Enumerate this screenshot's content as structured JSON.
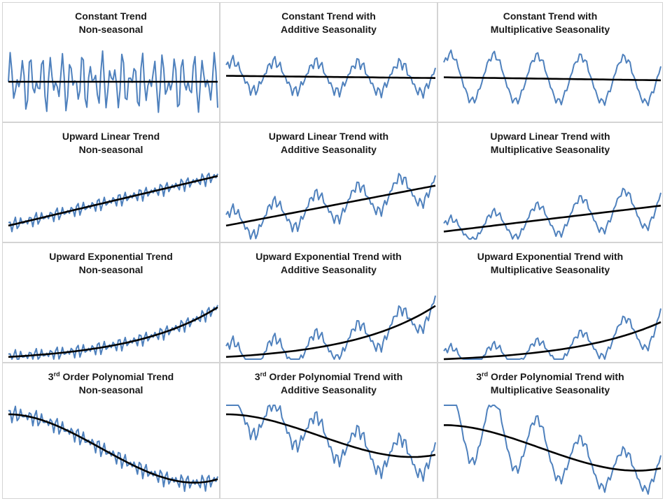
{
  "colors": {
    "series": "#4f81bd",
    "trend": "#000000",
    "border": "#d4d4d4"
  },
  "chart_data": [
    {
      "type": "line",
      "trend": "constant",
      "seasonality": "none",
      "title_lines": [
        {
          "text": "Constant Trend"
        },
        {
          "text": "Non-seasonal"
        }
      ],
      "ylim": [
        0,
        1
      ],
      "series": [],
      "trend_line": {
        "y0": 0.5,
        "y1": 0.5
      }
    },
    {
      "type": "line",
      "trend": "constant",
      "seasonality": "additive",
      "title_lines": [
        {
          "text": "Constant Trend with"
        },
        {
          "text": "Additive Seasonality"
        }
      ],
      "ylim": [
        0,
        1
      ],
      "series": [],
      "trend_line": {
        "y0": 0.58,
        "y1": 0.55
      }
    },
    {
      "type": "line",
      "trend": "constant",
      "seasonality": "multiplicative",
      "title_lines": [
        {
          "text": "Constant Trend with"
        },
        {
          "text": "Multiplicative Seasonality"
        }
      ],
      "ylim": [
        0,
        1
      ],
      "series": [],
      "trend_line": {
        "y0": 0.56,
        "y1": 0.52
      }
    },
    {
      "type": "line",
      "trend": "linear",
      "seasonality": "none",
      "title_lines": [
        {
          "text": "Upward Linear Trend"
        },
        {
          "text": "Non-seasonal"
        }
      ],
      "ylim": [
        0,
        1
      ],
      "series": [],
      "trend_line": {
        "y0": 0.18,
        "y1": 0.85
      }
    },
    {
      "type": "line",
      "trend": "linear",
      "seasonality": "additive",
      "title_lines": [
        {
          "text": "Upward Linear Trend with"
        },
        {
          "text": "Additive Seasonality"
        }
      ],
      "ylim": [
        0,
        1
      ],
      "series": [],
      "trend_line": {
        "y0": 0.18,
        "y1": 0.72
      }
    },
    {
      "type": "line",
      "trend": "linear",
      "seasonality": "multiplicative",
      "title_lines": [
        {
          "text": "Upward Linear Trend with"
        },
        {
          "text": "Multiplicative Seasonality"
        }
      ],
      "ylim": [
        0,
        1
      ],
      "series": [],
      "trend_line": {
        "y0": 0.1,
        "y1": 0.45
      }
    },
    {
      "type": "line",
      "trend": "exponential",
      "seasonality": "none",
      "title_lines": [
        {
          "text": "Upward Exponential Trend"
        },
        {
          "text": "Non-seasonal"
        }
      ],
      "ylim": [
        0,
        1
      ],
      "series": [],
      "trend_line": {
        "y0": 0.03,
        "y1": 0.7
      }
    },
    {
      "type": "line",
      "trend": "exponential",
      "seasonality": "additive",
      "title_lines": [
        {
          "text": "Upward Exponential Trend with"
        },
        {
          "text": "Additive Seasonality"
        }
      ],
      "ylim": [
        0,
        1
      ],
      "series": [],
      "trend_line": {
        "y0": 0.03,
        "y1": 0.72
      }
    },
    {
      "type": "line",
      "trend": "exponential",
      "seasonality": "multiplicative",
      "title_lines": [
        {
          "text": "Upward Exponential Trend with"
        },
        {
          "text": "Multiplicative Seasonality"
        }
      ],
      "ylim": [
        0,
        1
      ],
      "series": [],
      "trend_line": {
        "y0": 0.0,
        "y1": 0.5
      }
    },
    {
      "type": "line",
      "trend": "polynomial",
      "seasonality": "none",
      "title_lines": [
        {
          "text": "3",
          "sup": "rd",
          "rest": " Order Polynomial Trend"
        },
        {
          "text": "Non-seasonal"
        }
      ],
      "ylim": [
        0,
        1
      ],
      "series": [],
      "trend_line": {
        "y0": 0.9,
        "y1": 0.18
      }
    },
    {
      "type": "line",
      "trend": "polynomial",
      "seasonality": "additive",
      "title_lines": [
        {
          "text": "3",
          "sup": "rd",
          "rest": " Order Polynomial Trend with"
        },
        {
          "text": "Additive Seasonality"
        }
      ],
      "ylim": [
        0,
        1
      ],
      "series": [],
      "trend_line": {
        "y0": 0.9,
        "y1": 0.45
      }
    },
    {
      "type": "line",
      "trend": "polynomial",
      "seasonality": "multiplicative",
      "title_lines": [
        {
          "text": "3",
          "sup": "rd",
          "rest": " Order Polynomial Trend with"
        },
        {
          "text": "Multiplicative Seasonality"
        }
      ],
      "ylim": [
        0,
        1
      ],
      "series": [],
      "trend_line": {
        "y0": 0.78,
        "y1": 0.3
      }
    }
  ]
}
